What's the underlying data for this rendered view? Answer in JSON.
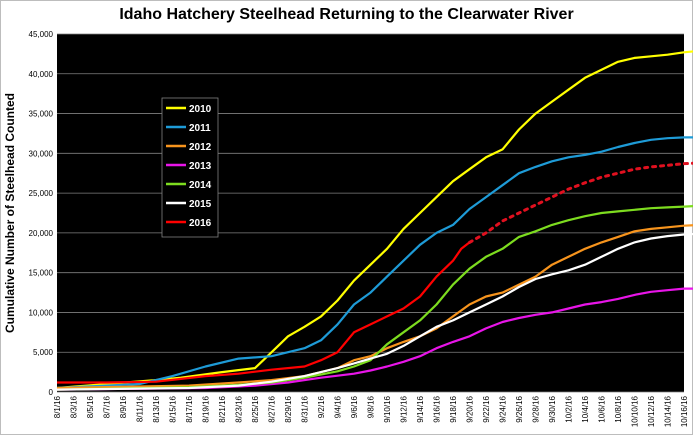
{
  "chart_data": {
    "type": "line",
    "title": "Idaho Hatchery Steelhead Returning to the Clearwater River",
    "ylabel": "Cumulative Number of Steelhead Counted",
    "xlabel": "",
    "ylim": [
      0,
      45000
    ],
    "yticks": [
      0,
      5000,
      10000,
      15000,
      20000,
      25000,
      30000,
      35000,
      40000,
      45000
    ],
    "ytick_labels": [
      "0",
      "5,000",
      "10,000",
      "15,000",
      "20,000",
      "25,000",
      "30,000",
      "35,000",
      "40,000",
      "45,000"
    ],
    "grid": true,
    "legend_position": "upper-left",
    "x_labels": [
      "8/1/16",
      "8/3/16",
      "8/5/16",
      "8/7/16",
      "8/9/16",
      "8/11/16",
      "8/13/16",
      "8/15/16",
      "8/17/16",
      "8/19/16",
      "8/21/16",
      "8/23/16",
      "8/25/16",
      "8/27/16",
      "8/29/16",
      "8/31/16",
      "9/2/16",
      "9/4/16",
      "9/6/16",
      "9/8/16",
      "9/10/16",
      "9/12/16",
      "9/14/16",
      "9/16/16",
      "9/18/16",
      "9/20/16",
      "9/22/16",
      "9/24/16",
      "9/26/16",
      "9/28/16",
      "9/30/16",
      "10/2/16",
      "10/4/16",
      "10/6/16",
      "10/8/16",
      "10/10/16",
      "10/12/16",
      "10/14/16",
      "10/16/16"
    ],
    "series": [
      {
        "name": "2010",
        "color": "#ffff00",
        "dashed": false,
        "points": [
          [
            0,
            500
          ],
          [
            12,
            1500
          ],
          [
            15,
            1800
          ],
          [
            20,
            2500
          ],
          [
            24,
            3000
          ],
          [
            25,
            4000
          ],
          [
            27,
            6000
          ],
          [
            28,
            7000
          ],
          [
            30,
            8200
          ],
          [
            32,
            9500
          ],
          [
            34,
            11500
          ],
          [
            36,
            14000
          ],
          [
            38,
            16000
          ],
          [
            40,
            18000
          ],
          [
            42,
            20500
          ],
          [
            44,
            22500
          ],
          [
            46,
            24500
          ],
          [
            48,
            26500
          ],
          [
            50,
            28000
          ],
          [
            52,
            29500
          ],
          [
            54,
            30500
          ],
          [
            56,
            33000
          ],
          [
            58,
            35000
          ],
          [
            60,
            36500
          ],
          [
            62,
            38000
          ],
          [
            64,
            39500
          ],
          [
            66,
            40500
          ],
          [
            68,
            41500
          ],
          [
            70,
            42000
          ],
          [
            72,
            42200
          ],
          [
            74,
            42400
          ],
          [
            76,
            42700
          ],
          [
            78,
            42900
          ],
          [
            80,
            43000
          ]
        ]
      },
      {
        "name": "2011",
        "color": "#1e9bd7",
        "dashed": false,
        "points": [
          [
            0,
            500
          ],
          [
            10,
            1000
          ],
          [
            14,
            2000
          ],
          [
            18,
            3200
          ],
          [
            22,
            4200
          ],
          [
            26,
            4500
          ],
          [
            30,
            5500
          ],
          [
            32,
            6500
          ],
          [
            34,
            8500
          ],
          [
            36,
            11000
          ],
          [
            38,
            12500
          ],
          [
            40,
            14500
          ],
          [
            42,
            16500
          ],
          [
            44,
            18500
          ],
          [
            46,
            20000
          ],
          [
            48,
            21000
          ],
          [
            50,
            23000
          ],
          [
            52,
            24500
          ],
          [
            54,
            26000
          ],
          [
            56,
            27500
          ],
          [
            58,
            28300
          ],
          [
            60,
            29000
          ],
          [
            62,
            29500
          ],
          [
            64,
            29800
          ],
          [
            66,
            30200
          ],
          [
            68,
            30800
          ],
          [
            70,
            31300
          ],
          [
            72,
            31700
          ],
          [
            74,
            31900
          ],
          [
            76,
            32000
          ],
          [
            78,
            32000
          ],
          [
            80,
            32000
          ]
        ]
      },
      {
        "name": "2012",
        "color": "#f7941d",
        "dashed": false,
        "points": [
          [
            0,
            500
          ],
          [
            16,
            800
          ],
          [
            22,
            1200
          ],
          [
            26,
            1500
          ],
          [
            30,
            2000
          ],
          [
            34,
            3000
          ],
          [
            36,
            4000
          ],
          [
            38,
            4500
          ],
          [
            40,
            5500
          ],
          [
            42,
            6300
          ],
          [
            44,
            7000
          ],
          [
            46,
            8000
          ],
          [
            48,
            9500
          ],
          [
            50,
            11000
          ],
          [
            52,
            12000
          ],
          [
            54,
            12500
          ],
          [
            56,
            13500
          ],
          [
            58,
            14500
          ],
          [
            60,
            16000
          ],
          [
            62,
            17000
          ],
          [
            64,
            18000
          ],
          [
            66,
            18800
          ],
          [
            68,
            19500
          ],
          [
            70,
            20200
          ],
          [
            72,
            20500
          ],
          [
            74,
            20700
          ],
          [
            76,
            20900
          ],
          [
            78,
            21000
          ],
          [
            80,
            21000
          ]
        ]
      },
      {
        "name": "2013",
        "color": "#e815e8",
        "dashed": false,
        "points": [
          [
            0,
            300
          ],
          [
            18,
            500
          ],
          [
            24,
            800
          ],
          [
            28,
            1200
          ],
          [
            32,
            1800
          ],
          [
            36,
            2300
          ],
          [
            38,
            2700
          ],
          [
            40,
            3200
          ],
          [
            42,
            3800
          ],
          [
            44,
            4500
          ],
          [
            46,
            5500
          ],
          [
            48,
            6300
          ],
          [
            50,
            7000
          ],
          [
            52,
            8000
          ],
          [
            54,
            8800
          ],
          [
            56,
            9300
          ],
          [
            58,
            9700
          ],
          [
            60,
            10000
          ],
          [
            62,
            10500
          ],
          [
            64,
            11000
          ],
          [
            66,
            11300
          ],
          [
            68,
            11700
          ],
          [
            70,
            12200
          ],
          [
            72,
            12600
          ],
          [
            74,
            12800
          ],
          [
            76,
            13000
          ],
          [
            78,
            13000
          ],
          [
            80,
            13000
          ]
        ]
      },
      {
        "name": "2014",
        "color": "#7ddc1f",
        "dashed": false,
        "points": [
          [
            0,
            300
          ],
          [
            16,
            600
          ],
          [
            22,
            900
          ],
          [
            26,
            1200
          ],
          [
            30,
            1800
          ],
          [
            34,
            2600
          ],
          [
            36,
            3200
          ],
          [
            38,
            4000
          ],
          [
            40,
            6000
          ],
          [
            42,
            7500
          ],
          [
            44,
            9000
          ],
          [
            46,
            11000
          ],
          [
            48,
            13500
          ],
          [
            50,
            15500
          ],
          [
            52,
            17000
          ],
          [
            54,
            18000
          ],
          [
            56,
            19500
          ],
          [
            58,
            20200
          ],
          [
            60,
            21000
          ],
          [
            62,
            21600
          ],
          [
            64,
            22100
          ],
          [
            66,
            22500
          ],
          [
            68,
            22700
          ],
          [
            70,
            22900
          ],
          [
            72,
            23100
          ],
          [
            74,
            23200
          ],
          [
            76,
            23300
          ],
          [
            78,
            23400
          ],
          [
            80,
            23400
          ]
        ]
      },
      {
        "name": "2015",
        "color": "#ffffff",
        "dashed": false,
        "points": [
          [
            0,
            300
          ],
          [
            16,
            500
          ],
          [
            22,
            800
          ],
          [
            26,
            1300
          ],
          [
            30,
            2000
          ],
          [
            34,
            3000
          ],
          [
            36,
            3600
          ],
          [
            38,
            4200
          ],
          [
            40,
            4800
          ],
          [
            42,
            5800
          ],
          [
            44,
            7000
          ],
          [
            46,
            8200
          ],
          [
            48,
            9000
          ],
          [
            50,
            10000
          ],
          [
            52,
            11000
          ],
          [
            54,
            12000
          ],
          [
            56,
            13200
          ],
          [
            58,
            14200
          ],
          [
            60,
            14800
          ],
          [
            62,
            15300
          ],
          [
            64,
            16000
          ],
          [
            66,
            17000
          ],
          [
            68,
            18000
          ],
          [
            70,
            18800
          ],
          [
            72,
            19300
          ],
          [
            74,
            19600
          ],
          [
            76,
            19800
          ],
          [
            78,
            19900
          ],
          [
            80,
            19900
          ]
        ]
      },
      {
        "name": "2016",
        "color": "#ff0000",
        "dashed": false,
        "points": [
          [
            0,
            1200
          ],
          [
            6,
            1200
          ],
          [
            12,
            1300
          ],
          [
            18,
            2000
          ],
          [
            22,
            2300
          ],
          [
            26,
            2800
          ],
          [
            30,
            3200
          ],
          [
            32,
            4000
          ],
          [
            34,
            5000
          ],
          [
            36,
            7500
          ],
          [
            38,
            8500
          ],
          [
            40,
            9500
          ],
          [
            42,
            10500
          ],
          [
            44,
            12000
          ],
          [
            46,
            14500
          ],
          [
            48,
            16500
          ],
          [
            49,
            18000
          ],
          [
            50,
            18800
          ]
        ]
      },
      {
        "name": "",
        "color": "#e0101f",
        "dashed": true,
        "points": [
          [
            50,
            18800
          ],
          [
            52,
            20000
          ],
          [
            54,
            21500
          ],
          [
            56,
            22500
          ],
          [
            58,
            23500
          ],
          [
            60,
            24500
          ],
          [
            62,
            25500
          ],
          [
            64,
            26300
          ],
          [
            66,
            27000
          ],
          [
            68,
            27500
          ],
          [
            70,
            28000
          ],
          [
            72,
            28300
          ],
          [
            74,
            28500
          ],
          [
            76,
            28700
          ],
          [
            78,
            28800
          ],
          [
            80,
            28800
          ]
        ]
      }
    ]
  }
}
